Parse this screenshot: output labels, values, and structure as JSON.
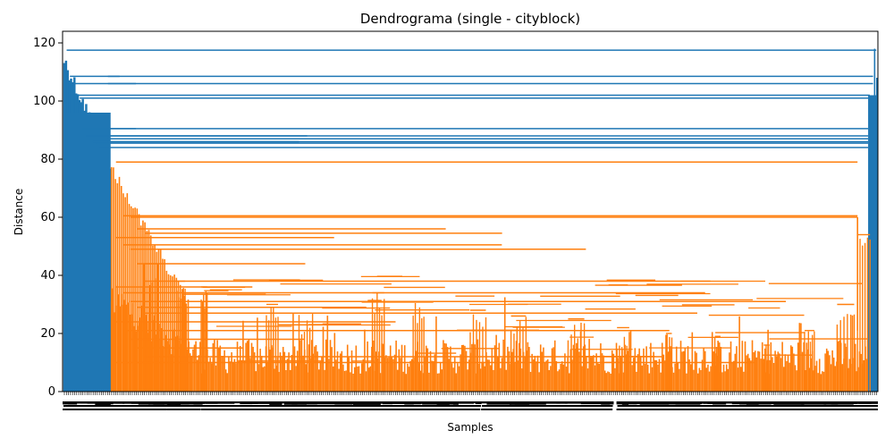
{
  "chart_data": {
    "type": "dendrogram",
    "title": "Dendrograma (single - cityblock)",
    "xlabel": "Samples",
    "ylabel": "Distance",
    "ylim": [
      0,
      124
    ],
    "yticks": [
      0,
      20,
      40,
      60,
      80,
      100,
      120
    ],
    "xtick_labels": "dense unreadable leaf labels (illegible)",
    "colors": {
      "cluster_1": "#1f77b4",
      "cluster_2": "#ff7f0e"
    },
    "root_merge_height": 118,
    "clusters": [
      {
        "name": "cluster_1",
        "color": "#1f77b4",
        "x_span": [
          0.0,
          0.06
        ],
        "max_height": 117
      },
      {
        "name": "cluster_2",
        "color": "#ff7f0e",
        "x_span": [
          0.06,
          0.992
        ],
        "max_height": 79
      },
      {
        "name": "cluster_1",
        "color": "#1f77b4",
        "x_span": [
          0.992,
          1.0
        ],
        "max_height": 108
      }
    ],
    "blue_merge_heights": [
      117.5,
      108.5,
      106,
      102,
      101,
      90.5,
      88,
      87,
      86,
      85.5,
      84
    ],
    "orange_merge_heights": [
      79,
      60.5,
      60,
      56,
      54.5,
      53,
      50.5,
      49,
      44,
      38,
      36,
      34,
      31,
      29,
      27,
      24,
      21,
      18,
      15,
      12,
      10
    ]
  },
  "figure": {
    "grid": false,
    "legend": "none"
  }
}
